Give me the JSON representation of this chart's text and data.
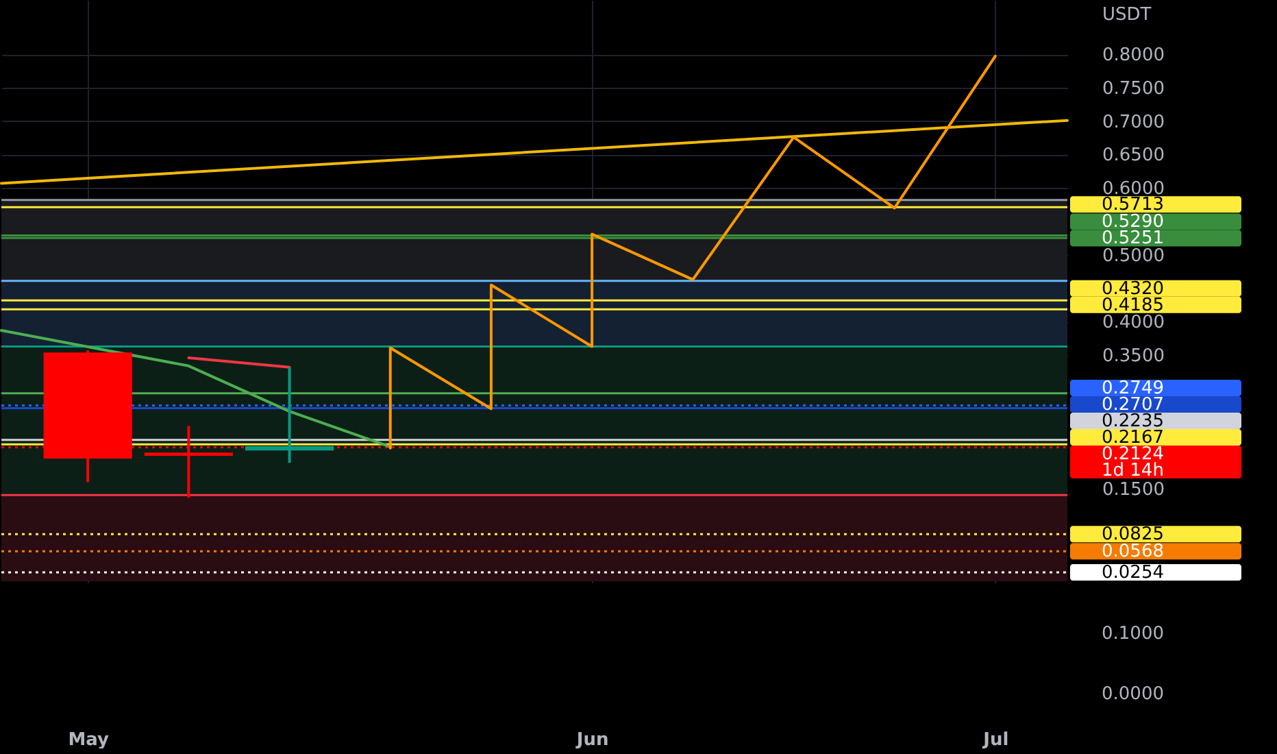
{
  "chart_data": {
    "type": "candlestick",
    "ylabel": "USDT",
    "x": [
      "--05-01",
      "--05-08",
      "--05-15"
    ],
    "ohlc": [
      [
        0.3525,
        0.357,
        0.16,
        0.197
      ],
      [
        0.203,
        0.244,
        0.137,
        0.201
      ],
      [
        0.209,
        0.332,
        0.189,
        0.2124
      ]
    ],
    "series": [
      {
        "type": "line",
        "color": "#4caf50",
        "x": [
          "--04-25",
          "--05-08",
          "--05-15",
          "--05-22"
        ],
        "values": [
          0.387,
          0.334,
          0.266,
          0.213
        ]
      },
      {
        "type": "line",
        "color": "#f23645",
        "x": [
          "--05-08",
          "--05-15"
        ],
        "values": [
          0.346,
          0.332
        ]
      },
      {
        "type": "line",
        "color": "#f0b90b",
        "x": [
          "--04-25",
          "--07-08"
        ],
        "values": [
          0.607,
          0.701
        ]
      },
      {
        "type": "line",
        "color": "#ff9800",
        "x": [
          "--05-22",
          "--05-22",
          "--05-29",
          "--05-29",
          "--06-05",
          "--06-05",
          "--06-12",
          "--06-19",
          "--06-26",
          "--07-03"
        ],
        "values": [
          0.211,
          0.361,
          0.27,
          0.455,
          0.363,
          0.531,
          0.463,
          0.676,
          0.57,
          0.797
        ]
      }
    ],
    "xlim": [
      "--04-25",
      "--07-08"
    ],
    "xticks": [
      {
        "value": "--05-01",
        "label": "May"
      },
      {
        "value": "--06-05",
        "label": "Jun"
      },
      {
        "value": "--07-03",
        "label": "Jul"
      }
    ],
    "ylim": [
      0.01,
      0.881
    ],
    "yticks": [
      {
        "value": 0.8,
        "label": "0.8000"
      },
      {
        "value": 0.75,
        "label": "0.7500"
      },
      {
        "value": 0.7,
        "label": "0.7000"
      },
      {
        "value": 0.65,
        "label": "0.6500"
      },
      {
        "value": 0.6,
        "label": "0.6000"
      },
      {
        "value": 0.5,
        "label": "0.5000"
      },
      {
        "value": 0.4,
        "label": "0.4000"
      },
      {
        "value": 0.35,
        "label": "0.3500"
      },
      {
        "value": 0.15,
        "label": "0.1500"
      }
    ],
    "grid": true,
    "bands": [
      {
        "axis": "y",
        "from": 0.012,
        "to": 0.141,
        "color": "#2a0d12"
      },
      {
        "axis": "y",
        "from": 0.141,
        "to": 0.363,
        "color": "#0c1f17"
      },
      {
        "axis": "y",
        "from": 0.363,
        "to": 0.461,
        "color": "#142133"
      },
      {
        "axis": "y",
        "from": 0.461,
        "to": 0.582,
        "color": "#1a1b1f"
      }
    ],
    "ref_lines": [
      {
        "axis": "y",
        "value": 0.582,
        "color": "#9598a1"
      },
      {
        "axis": "y",
        "value": 0.5713,
        "label": "0.5713",
        "color": "#ffeb3b"
      },
      {
        "axis": "y",
        "value": 0.529,
        "label": "0.5290",
        "color": "#388e3c"
      },
      {
        "axis": "y",
        "value": 0.5251,
        "label": "0.5251",
        "color": "#388e3c"
      },
      {
        "axis": "y",
        "value": 0.461,
        "color": "#64b5f6"
      },
      {
        "axis": "y",
        "value": 0.432,
        "label": "0.4320",
        "color": "#ffeb3b"
      },
      {
        "axis": "y",
        "value": 0.4185,
        "label": "0.4185",
        "color": "#ffeb3b"
      },
      {
        "axis": "y",
        "value": 0.363,
        "color": "#089981"
      },
      {
        "axis": "y",
        "value": 0.293,
        "color": "#4caf50"
      },
      {
        "axis": "y",
        "value": 0.2749,
        "label": "0.2749",
        "color": "#2962ff",
        "line_style": "dotted"
      },
      {
        "axis": "y",
        "value": 0.2707,
        "label": "0.2707",
        "color": "#1848cc"
      },
      {
        "axis": "y",
        "value": 0.2235,
        "label": "0.2235",
        "color": "#d1d4dc"
      },
      {
        "axis": "y",
        "value": 0.2167,
        "label": "0.2167",
        "color": "#ffeb3b"
      },
      {
        "axis": "y",
        "value": 0.2124,
        "label": "0.2124\n1d 14h",
        "color": "#ff0000",
        "line_style": "dotted"
      },
      {
        "axis": "y",
        "value": 0.141,
        "color": "#f23645"
      },
      {
        "axis": "y",
        "value": 0.0825,
        "label": "0.0825",
        "color": "#ffeb3b",
        "line_style": "dotted"
      },
      {
        "axis": "y",
        "value": 0.0568,
        "label": "0.0568",
        "color": "#f57c00",
        "line_style": "dotted"
      },
      {
        "axis": "y",
        "value": 0.0254,
        "label": "0.0254",
        "color": "#ffffff",
        "line_style": "dotted"
      }
    ],
    "annotations": [
      "0.1000",
      "0.0000"
    ]
  }
}
